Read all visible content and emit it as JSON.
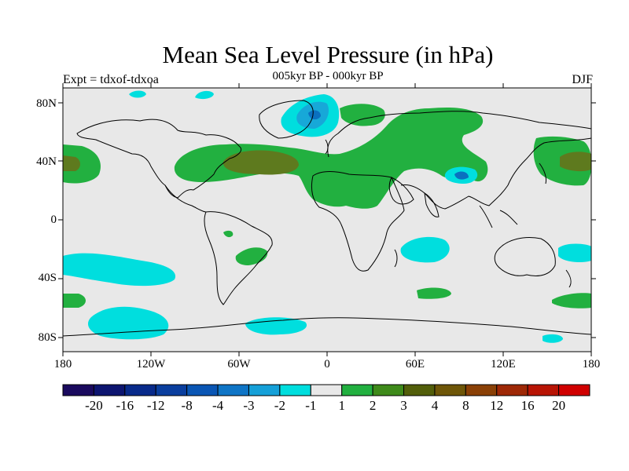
{
  "title": "Mean Sea Level Pressure (in hPa)",
  "subtitle": "005kyr BP - 000kyr BP",
  "experiment": "Expt = tdxof-tdxoa",
  "season": "DJF",
  "lat_ticks": [
    "80N",
    "40N",
    "0",
    "40S",
    "80S"
  ],
  "lon_ticks": [
    "180",
    "120W",
    "60W",
    "0",
    "60E",
    "120E",
    "180"
  ],
  "colorbar": {
    "colors": [
      "#1a0a5e",
      "#0d1570",
      "#082a8a",
      "#0a3e9e",
      "#0a56b4",
      "#0f75c6",
      "#15a0d8",
      "#00dede",
      "#e8e8e8",
      "#22b040",
      "#3e8a1a",
      "#525e0a",
      "#6e5608",
      "#8a4006",
      "#9e2806",
      "#b81404",
      "#d00000"
    ],
    "labels": [
      "-20",
      "-16",
      "-12",
      "-8",
      "-4",
      "-3",
      "-2",
      "-1",
      "1",
      "2",
      "3",
      "4",
      "8",
      "12",
      "16",
      "20"
    ]
  },
  "map_colors": {
    "background": "#e8e8e8",
    "coast": "#000000",
    "pos1": "#22b040",
    "pos2": "#5e7a1e",
    "neg1": "#00dede",
    "neg2": "#17a8d8",
    "neg3": "#0a70c0"
  }
}
